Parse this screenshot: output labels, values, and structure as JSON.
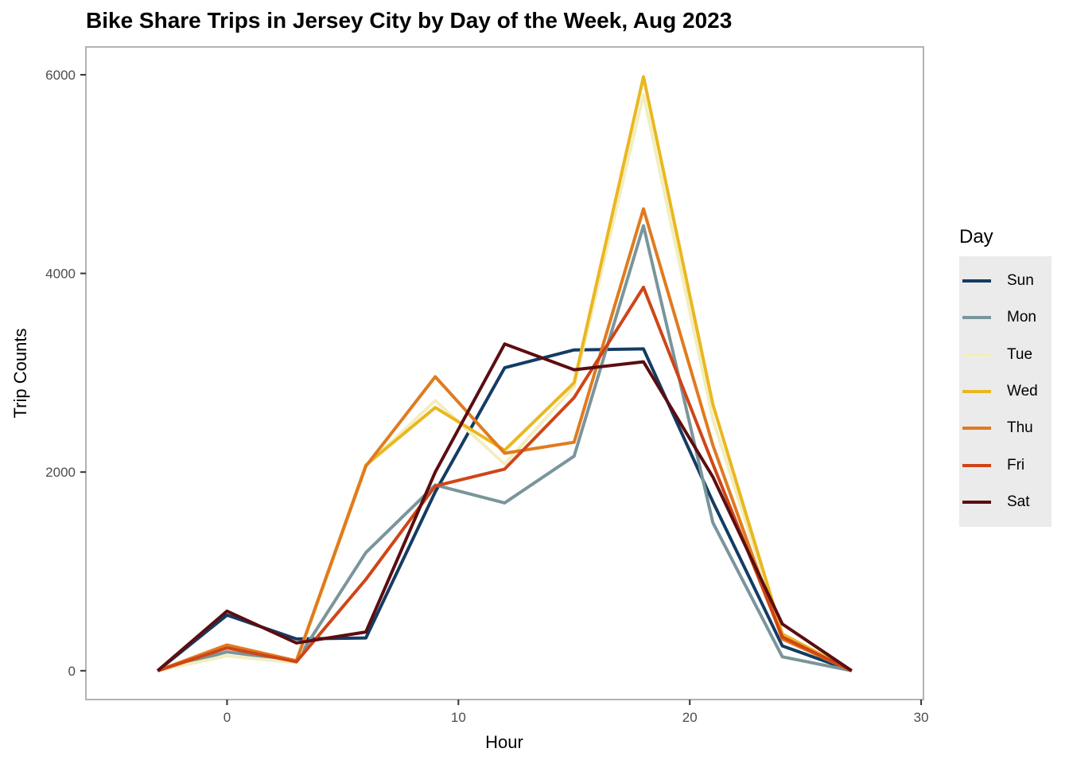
{
  "chart_data": {
    "type": "line",
    "title": "Bike Share Trips in Jersey City by Day of the Week, Aug 2023",
    "xlabel": "Hour",
    "ylabel": "Trip Counts",
    "xlim": [
      -6.1,
      30.1
    ],
    "ylim": [
      -290,
      6280
    ],
    "xticks": [
      0,
      10,
      20,
      30
    ],
    "yticks": [
      0,
      2000,
      4000,
      6000
    ],
    "grid": false,
    "legend": {
      "title": "Day",
      "position": "right"
    },
    "x": [
      -3,
      0,
      3,
      6,
      9,
      12,
      15,
      18,
      21,
      24,
      27
    ],
    "series": [
      {
        "name": "Sun",
        "color": "#143c64",
        "values": [
          0,
          560,
          320,
          330,
          1800,
          3050,
          3230,
          3240,
          1700,
          250,
          0
        ]
      },
      {
        "name": "Mon",
        "color": "#7a959b",
        "values": [
          0,
          190,
          100,
          1190,
          1870,
          1690,
          2160,
          4480,
          1490,
          140,
          0
        ]
      },
      {
        "name": "Tue",
        "color": "#f2eebe",
        "values": [
          0,
          150,
          80,
          2060,
          2720,
          2080,
          2860,
          5800,
          2530,
          350,
          0
        ]
      },
      {
        "name": "Wed",
        "color": "#eab71f",
        "values": [
          0,
          230,
          100,
          2070,
          2650,
          2220,
          2900,
          5980,
          2680,
          370,
          0
        ]
      },
      {
        "name": "Thu",
        "color": "#e07b1f",
        "values": [
          0,
          260,
          100,
          2060,
          2960,
          2190,
          2300,
          4650,
          2270,
          320,
          0
        ]
      },
      {
        "name": "Fri",
        "color": "#cf4518",
        "values": [
          0,
          230,
          90,
          920,
          1860,
          2030,
          2750,
          3860,
          2080,
          340,
          0
        ]
      },
      {
        "name": "Sat",
        "color": "#5c0d10",
        "values": [
          0,
          600,
          280,
          390,
          2000,
          3290,
          3030,
          3110,
          1950,
          470,
          0
        ]
      }
    ]
  }
}
